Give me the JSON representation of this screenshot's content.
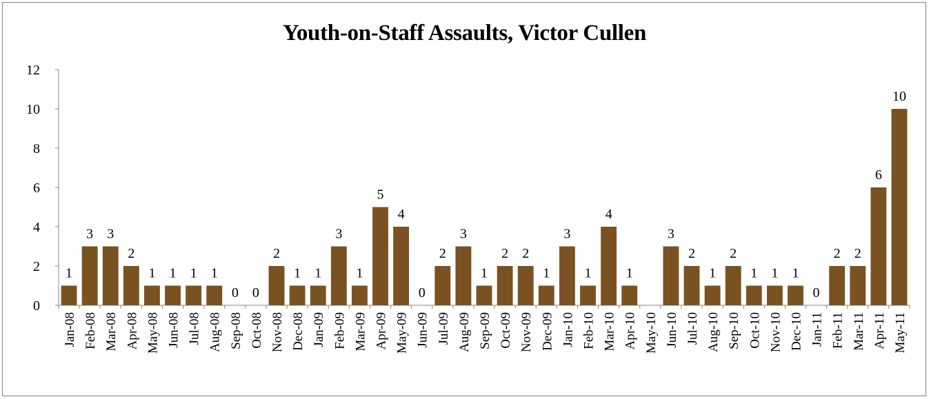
{
  "chart_data": {
    "type": "bar",
    "title": "Youth-on-Staff Assaults, Victor Cullen",
    "xlabel": "",
    "ylabel": "",
    "ylim": [
      0,
      12
    ],
    "yticks": [
      0,
      2,
      4,
      6,
      8,
      10,
      12
    ],
    "grid": false,
    "legend": "none",
    "bar_color": "#7a5222",
    "categories": [
      "Jan-08",
      "Feb-08",
      "Mar-08",
      "Apr-08",
      "May-08",
      "Jun-08",
      "Jul-08",
      "Aug-08",
      "Sep-08",
      "Oct-08",
      "Nov-08",
      "Dec-08",
      "Jan-09",
      "Feb-09",
      "Mar-09",
      "Apr-09",
      "May-09",
      "Jun-09",
      "Jul-09",
      "Aug-09",
      "Sep-09",
      "Oct-09",
      "Nov-09",
      "Dec-09",
      "Jan-10",
      "Feb-10",
      "Mar-10",
      "Apr-10",
      "May-10",
      "Jun-10",
      "Jul-10",
      "Aug-10",
      "Sep-10",
      "Oct-10",
      "Nov-10",
      "Dec-10",
      "Jan-11",
      "Feb-11",
      "Mar-11",
      "Apr-11",
      "May-11"
    ],
    "values": [
      1,
      3,
      3,
      2,
      1,
      1,
      1,
      1,
      0,
      0,
      2,
      1,
      1,
      3,
      1,
      5,
      4,
      0,
      2,
      3,
      1,
      2,
      2,
      1,
      3,
      1,
      4,
      1,
      null,
      3,
      2,
      1,
      2,
      1,
      1,
      1,
      0,
      2,
      2,
      6,
      10
    ],
    "data_labels": [
      "1",
      "3",
      "3",
      "2",
      "1",
      "1",
      "1",
      "1",
      "0",
      "0",
      "2",
      "1",
      "1",
      "3",
      "1",
      "5",
      "4",
      "0",
      "2",
      "3",
      "1",
      "2",
      "2",
      "1",
      "3",
      "1",
      "4",
      "1",
      "",
      "3",
      "2",
      "1",
      "2",
      "1",
      "1",
      "1",
      "0",
      "2",
      "2",
      "6",
      "10"
    ]
  }
}
